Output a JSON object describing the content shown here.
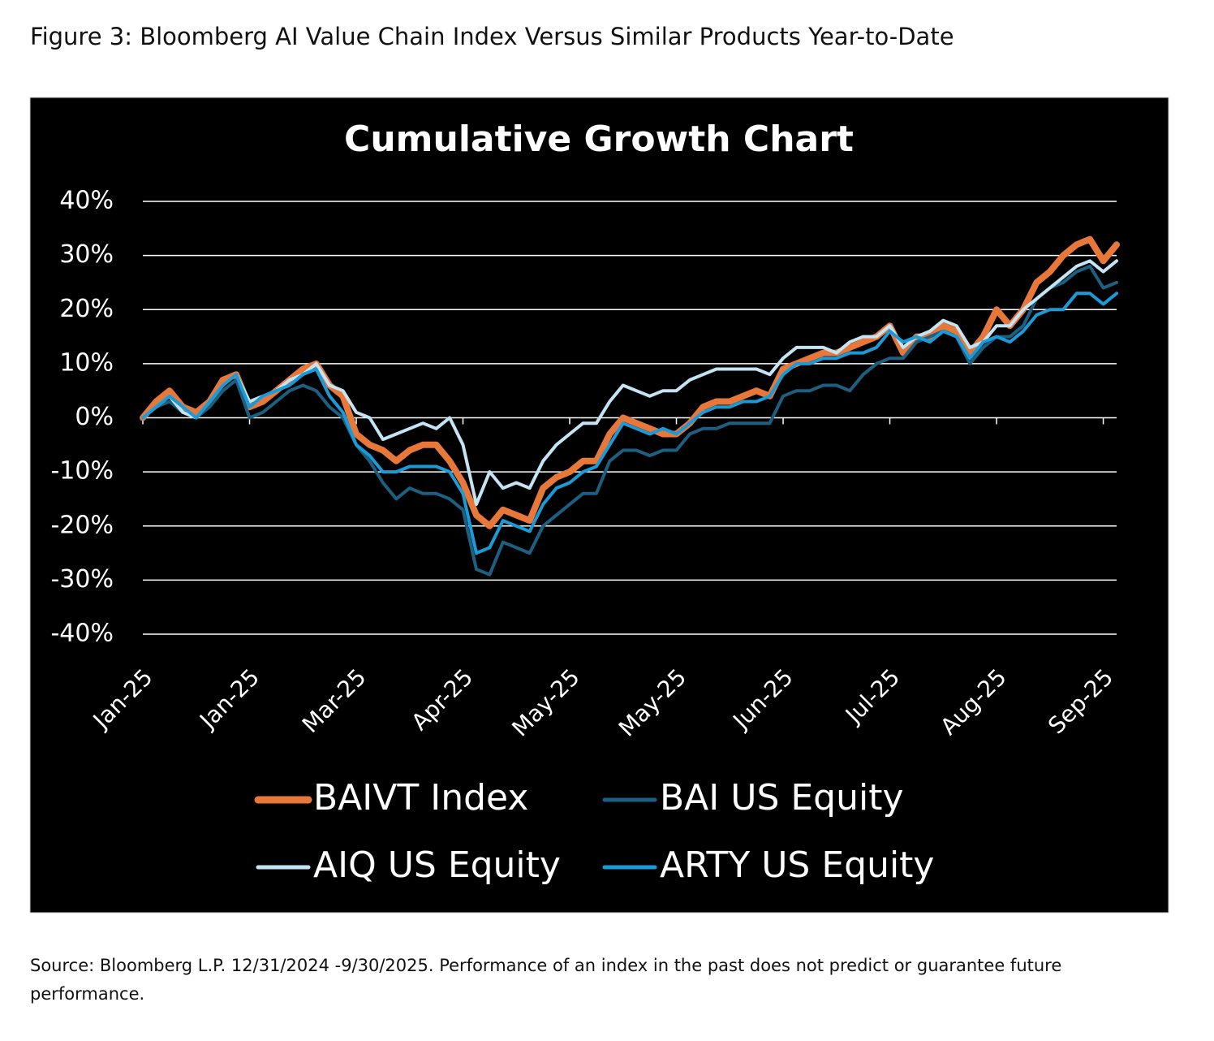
{
  "figure_title": "Figure 3: Bloomberg AI Value Chain Index Versus Similar Products Year-to-Date",
  "source": "Source: Bloomberg L.P. 12/31/2024 -9/30/2025. Performance of an index in the past does not predict or guarantee future performance.",
  "chart_data": {
    "type": "line",
    "title": "Cumulative Growth Chart",
    "categories": [
      "Jan-25",
      null,
      null,
      null,
      null,
      null,
      null,
      null,
      "Jan-25",
      null,
      null,
      null,
      null,
      null,
      null,
      null,
      "Mar-25",
      null,
      null,
      null,
      null,
      null,
      null,
      null,
      "Apr-25",
      null,
      null,
      null,
      null,
      null,
      null,
      null,
      "May-25",
      null,
      null,
      null,
      null,
      null,
      null,
      null,
      "May-25",
      null,
      null,
      null,
      null,
      null,
      null,
      null,
      "Jun-25",
      null,
      null,
      null,
      null,
      null,
      null,
      null,
      "Jul-25",
      null,
      null,
      null,
      null,
      null,
      null,
      null,
      "Aug-25",
      null,
      null,
      null,
      null,
      null,
      null,
      null,
      "Sep-25",
      null
    ],
    "ylim": [
      -40,
      40
    ],
    "yticks": [
      {
        "value": -40,
        "label": "-40%"
      },
      {
        "value": -30,
        "label": "-30%"
      },
      {
        "value": -20,
        "label": "-20%"
      },
      {
        "value": -10,
        "label": "-10%"
      },
      {
        "value": 0,
        "label": "0%"
      },
      {
        "value": 10,
        "label": "10%"
      },
      {
        "value": 20,
        "label": "20%"
      },
      {
        "value": 30,
        "label": "30%"
      },
      {
        "value": 40,
        "label": "40%"
      }
    ],
    "grid": true,
    "series": [
      {
        "name": "BAIVT Index",
        "color": "#e8773a",
        "values": [
          0,
          3,
          5,
          2,
          1,
          3,
          7,
          8,
          2,
          3,
          5,
          7,
          9,
          10,
          6,
          4,
          -3,
          -5,
          -6,
          -8,
          -6,
          -5,
          -5,
          -8,
          -12,
          -18,
          -20,
          -17,
          -18,
          -19,
          -13,
          -11,
          -10,
          -8,
          -8,
          -3,
          0,
          -1,
          -2,
          -3,
          -3,
          -1,
          2,
          3,
          3,
          4,
          5,
          4,
          9,
          10,
          11,
          12,
          12,
          13,
          14,
          15,
          17,
          12,
          15,
          15,
          17,
          16,
          12,
          15,
          20,
          17,
          20,
          25,
          27,
          30,
          32,
          33,
          29,
          32
        ]
      },
      {
        "name": "BAI US Equity",
        "color": "#1d5f80",
        "values": [
          0,
          2,
          3,
          1,
          0,
          2,
          5,
          7,
          0,
          1,
          3,
          5,
          6,
          5,
          2,
          0,
          -5,
          -8,
          -12,
          -15,
          -13,
          -14,
          -14,
          -15,
          -17,
          -28,
          -29,
          -23,
          -24,
          -25,
          -20,
          -18,
          -16,
          -14,
          -14,
          -8,
          -6,
          -6,
          -7,
          -6,
          -6,
          -3,
          -2,
          -2,
          -1,
          -1,
          -1,
          -1,
          4,
          5,
          5,
          6,
          6,
          5,
          8,
          10,
          11,
          11,
          14,
          15,
          16,
          15,
          10,
          13,
          15,
          15,
          17,
          22,
          24,
          25,
          27,
          28,
          24,
          25
        ]
      },
      {
        "name": "AIQ US Equity",
        "color": "#c5e4f3",
        "values": [
          0,
          2,
          4,
          1,
          0,
          3,
          6,
          8,
          3,
          4,
          5,
          7,
          8,
          10,
          6,
          5,
          1,
          0,
          -4,
          -3,
          -2,
          -1,
          -2,
          0,
          -5,
          -16,
          -10,
          -13,
          -12,
          -13,
          -8,
          -5,
          -3,
          -1,
          -1,
          3,
          6,
          5,
          4,
          5,
          5,
          7,
          8,
          9,
          9,
          9,
          9,
          8,
          11,
          13,
          13,
          13,
          12,
          14,
          15,
          15,
          17,
          13,
          15,
          16,
          18,
          17,
          13,
          14,
          17,
          17,
          20,
          22,
          24,
          26,
          28,
          29,
          27,
          29
        ]
      },
      {
        "name": "ARTY US Equity",
        "color": "#1a9ad6",
        "values": [
          0,
          2,
          4,
          2,
          0,
          3,
          6,
          8,
          2,
          4,
          5,
          6,
          8,
          9,
          4,
          1,
          -5,
          -7,
          -10,
          -10,
          -9,
          -9,
          -9,
          -10,
          -14,
          -25,
          -24,
          -19,
          -20,
          -21,
          -16,
          -13,
          -12,
          -10,
          -9,
          -5,
          -1,
          -2,
          -3,
          -2,
          -3,
          -1,
          1,
          2,
          2,
          3,
          3,
          4,
          8,
          10,
          10,
          11,
          11,
          12,
          12,
          13,
          16,
          14,
          15,
          14,
          16,
          15,
          11,
          14,
          15,
          14,
          16,
          19,
          20,
          20,
          23,
          23,
          21,
          23
        ]
      }
    ],
    "legend": "bottom"
  }
}
